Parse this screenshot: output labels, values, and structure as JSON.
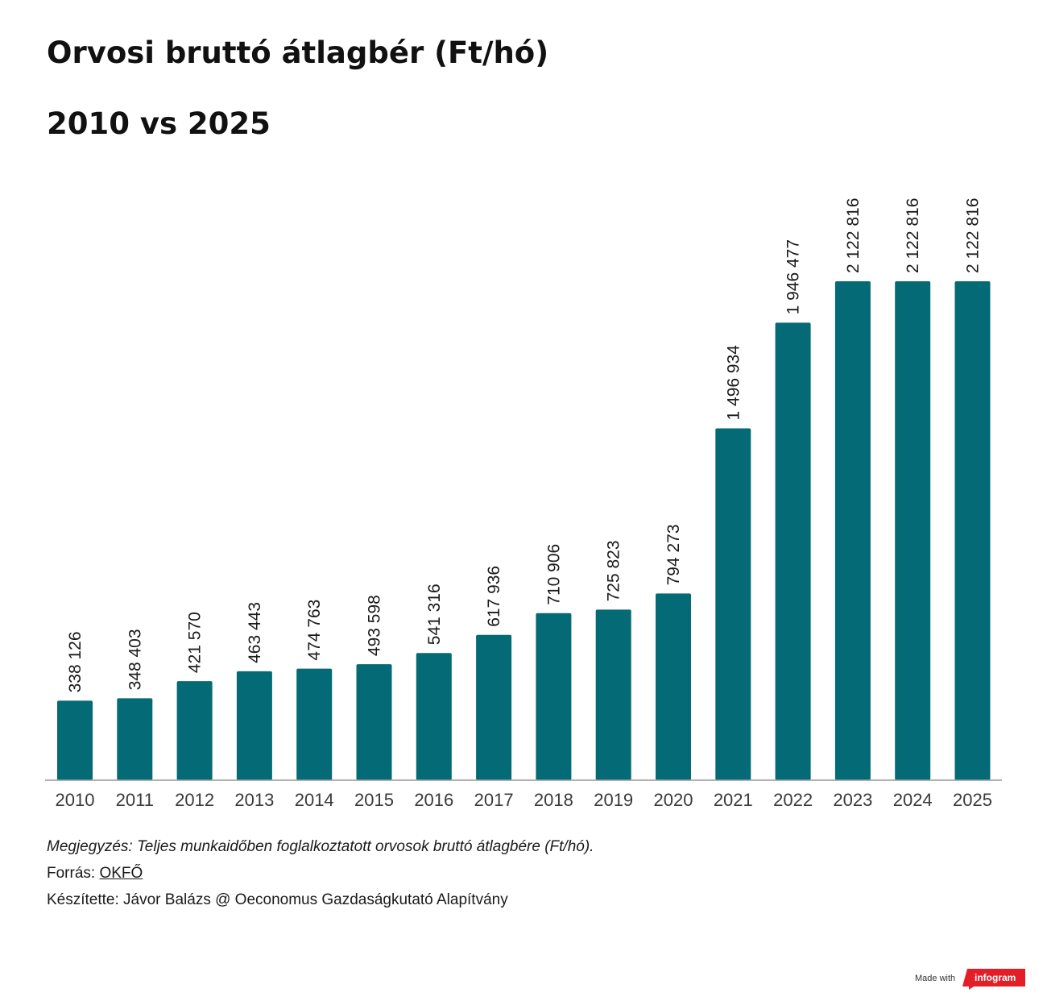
{
  "header": {
    "title": "Orvosi bruttó átlagbér (Ft/hó)",
    "subtitle": "2010 vs 2025"
  },
  "colors": {
    "bar": "#046a75",
    "axis": "#9a9a9a",
    "text": "#1a1a1a",
    "brand": "#e41e26"
  },
  "chart_data": {
    "type": "bar",
    "title": "Orvosi bruttó átlagbér (Ft/hó)",
    "subtitle": "2010 vs 2025",
    "xlabel": "",
    "ylabel": "",
    "categories": [
      "2010",
      "2011",
      "2012",
      "2013",
      "2014",
      "2015",
      "2016",
      "2017",
      "2018",
      "2019",
      "2020",
      "2021",
      "2022",
      "2023",
      "2024",
      "2025"
    ],
    "values": [
      338126,
      348403,
      421570,
      463443,
      474763,
      493598,
      541316,
      617936,
      710906,
      725823,
      794273,
      1496934,
      1946477,
      2122816,
      2122816,
      2122816
    ],
    "data_labels": [
      "338 126",
      "348 403",
      "421 570",
      "463 443",
      "474 763",
      "493 598",
      "541 316",
      "617 936",
      "710 906",
      "725 823",
      "794 273",
      "1 496 934",
      "1 946 477",
      "2 122 816",
      "2 122 816",
      "2 122 816"
    ],
    "ylim": [
      0,
      2122816
    ],
    "grid": false,
    "legend": "none"
  },
  "footer": {
    "note": "Megjegyzés: Teljes munkaidőben foglalkoztatott orvosok bruttó átlagbére (Ft/hó).",
    "source_prefix": "Forrás: ",
    "source_link": "OKFŐ",
    "author": "Készítette: Jávor Balázs @ Oeconomus Gazdaságkutató Alapítvány",
    "made_with": "Made with",
    "brand": "infogram"
  }
}
